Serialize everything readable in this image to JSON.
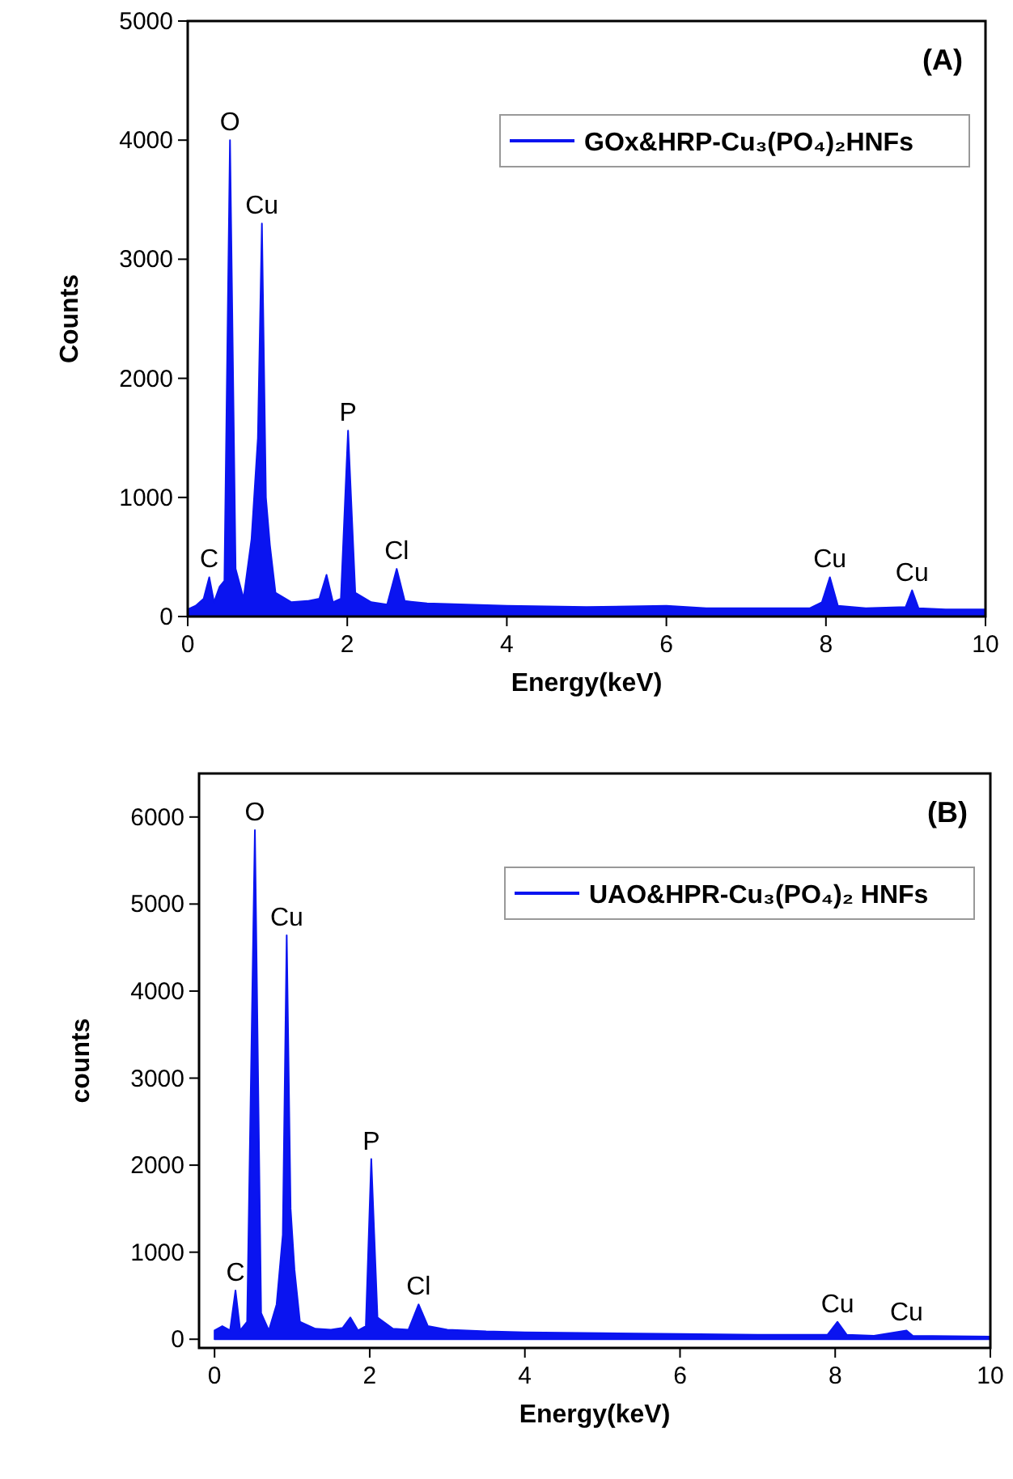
{
  "chart_data": [
    {
      "type": "area",
      "xlabel": "Energy(keV)",
      "ylabel": "Counts",
      "xlim": [
        0,
        10
      ],
      "ylim": [
        0,
        5000
      ],
      "xticks": [
        0,
        2,
        4,
        6,
        8,
        10
      ],
      "yticks": [
        0,
        1000,
        2000,
        3000,
        4000,
        5000
      ],
      "legend": "top right",
      "grid": false,
      "series": [
        {
          "name": "GOx&HRP-Cu₃(PO₄)₂HNFs",
          "color": "#0a14f0",
          "x": [
            0,
            0.1,
            0.2,
            0.27,
            0.33,
            0.4,
            0.46,
            0.53,
            0.6,
            0.7,
            0.8,
            0.88,
            0.93,
            0.98,
            1.03,
            1.1,
            1.3,
            1.5,
            1.65,
            1.74,
            1.82,
            1.92,
            2.01,
            2.1,
            2.3,
            2.5,
            2.62,
            2.72,
            3,
            3.5,
            4,
            5,
            6,
            6.5,
            7,
            7.8,
            7.95,
            8.05,
            8.15,
            8.5,
            9,
            9.08,
            9.16,
            9.5,
            10
          ],
          "values": [
            60,
            90,
            150,
            330,
            120,
            250,
            300,
            4000,
            400,
            150,
            650,
            1500,
            3300,
            1000,
            600,
            200,
            120,
            130,
            150,
            350,
            120,
            150,
            1560,
            200,
            120,
            100,
            400,
            130,
            110,
            100,
            90,
            80,
            90,
            70,
            70,
            70,
            120,
            330,
            90,
            70,
            80,
            220,
            70,
            60,
            60
          ]
        }
      ],
      "annotations": [
        "(A)",
        {
          "text": "O",
          "x": 0.53,
          "y": 4000
        },
        {
          "text": "Cu",
          "x": 0.93,
          "y": 3300
        },
        {
          "text": "C",
          "x": 0.27,
          "y": 330
        },
        {
          "text": "P",
          "x": 2.01,
          "y": 1560
        },
        {
          "text": "Cl",
          "x": 2.62,
          "y": 400
        },
        {
          "text": "Cu",
          "x": 8.05,
          "y": 330
        },
        {
          "text": "Cu",
          "x": 9.08,
          "y": 220
        }
      ]
    },
    {
      "type": "area",
      "xlabel": "Energy(keV)",
      "ylabel": "counts",
      "xlim": [
        -0.2,
        10
      ],
      "ylim": [
        -100,
        6500
      ],
      "xticks": [
        0,
        2,
        4,
        6,
        8,
        10
      ],
      "yticks": [
        0,
        1000,
        2000,
        3000,
        4000,
        5000,
        6000
      ],
      "legend": "top right",
      "grid": false,
      "series": [
        {
          "name": "UAO&HPR-Cu₃(PO₄)₂ HNFs",
          "color": "#0a14f0",
          "x": [
            0,
            0.1,
            0.2,
            0.27,
            0.33,
            0.42,
            0.52,
            0.6,
            0.7,
            0.8,
            0.88,
            0.93,
            0.98,
            1.03,
            1.1,
            1.3,
            1.5,
            1.65,
            1.75,
            1.85,
            1.95,
            2.02,
            2.1,
            2.3,
            2.5,
            2.63,
            2.75,
            3,
            3.5,
            4,
            5,
            6,
            7,
            7.9,
            8.03,
            8.15,
            8.5,
            8.92,
            9,
            10
          ],
          "values": [
            100,
            150,
            100,
            560,
            100,
            200,
            5850,
            300,
            100,
            400,
            1200,
            4640,
            1500,
            800,
            200,
            120,
            110,
            130,
            250,
            100,
            150,
            2070,
            250,
            120,
            110,
            400,
            150,
            110,
            90,
            80,
            70,
            60,
            50,
            50,
            200,
            50,
            40,
            100,
            40,
            30
          ]
        }
      ],
      "annotations": [
        "(B)",
        {
          "text": "O",
          "x": 0.52,
          "y": 5850
        },
        {
          "text": "Cu",
          "x": 0.93,
          "y": 4640
        },
        {
          "text": "C",
          "x": 0.27,
          "y": 560
        },
        {
          "text": "P",
          "x": 2.02,
          "y": 2070
        },
        {
          "text": "Cl",
          "x": 2.63,
          "y": 400
        },
        {
          "text": "Cu",
          "x": 8.03,
          "y": 200
        },
        {
          "text": "Cu",
          "x": 8.92,
          "y": 100
        }
      ]
    }
  ]
}
